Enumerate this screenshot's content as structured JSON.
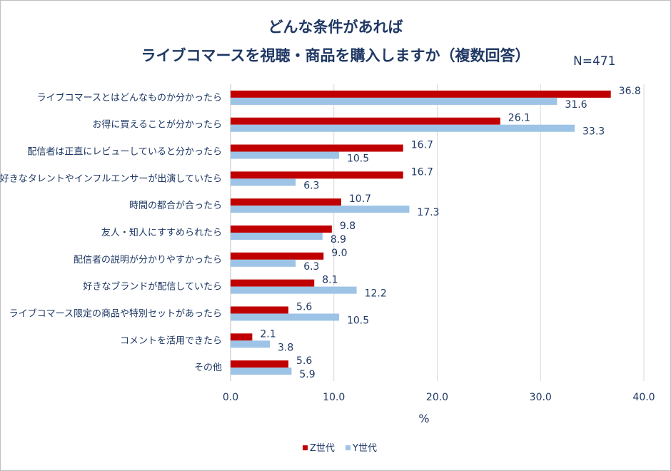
{
  "title_line1": "どんな条件があれば",
  "title_line2": "ライブコマースを視聴・商品を購入しますか（複数回答）",
  "sample_size": "N=471",
  "chart_data": {
    "type": "bar",
    "orientation": "horizontal",
    "categories": [
      "ライブコマースとはどんなものか分かったら",
      "お得に買えることが分かったら",
      "配信者は正直にレビューしていると分かったら",
      "好きなタレントやインフルエンサーが出演していたら",
      "時間の都合が合ったら",
      "友人・知人にすすめられたら",
      "配信者の説明が分かりやすかったら",
      "好きなブランドが配信していたら",
      "ライブコマース限定の商品や特別セットがあったら",
      "コメントを活用できたら",
      "その他"
    ],
    "series": [
      {
        "name": "Z世代",
        "color": "#c00000",
        "values": [
          36.8,
          26.1,
          16.7,
          16.7,
          10.7,
          9.8,
          9.0,
          8.1,
          5.6,
          2.1,
          5.6
        ]
      },
      {
        "name": "Y世代",
        "color": "#9dc3e6",
        "values": [
          31.6,
          33.3,
          10.5,
          6.3,
          17.3,
          8.9,
          6.3,
          12.2,
          10.5,
          3.8,
          5.9
        ]
      }
    ],
    "xlabel": "%",
    "xlim": [
      0,
      40
    ],
    "xticks": [
      "0.0",
      "10.0",
      "20.0",
      "30.0",
      "40.0"
    ],
    "grid": true,
    "legend_position": "bottom"
  }
}
